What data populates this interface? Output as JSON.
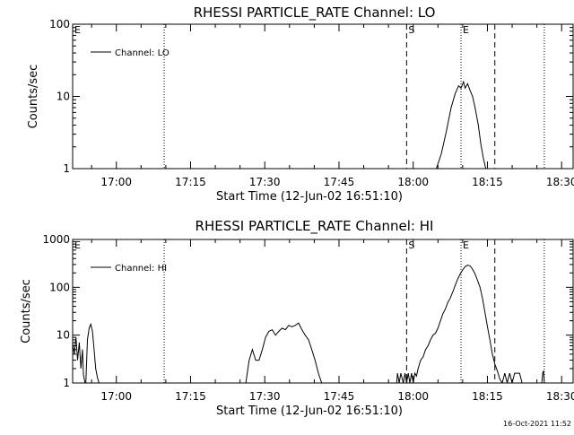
{
  "footer": "16-Oct-2021 11:52",
  "chart_data": [
    {
      "type": "line",
      "title": "RHESSI PARTICLE_RATE Channel: LO",
      "xlabel": "Start Time (12-Jun-02 16:51:10)",
      "ylabel": "Counts/sec",
      "y_scale": "log",
      "ylim": [
        1,
        100
      ],
      "xlim": [
        "16:51:10",
        "18:32:30"
      ],
      "y_ticks": [
        "1",
        "10",
        "100"
      ],
      "x_ticks": [
        "17:00",
        "17:15",
        "17:30",
        "17:45",
        "18:00",
        "18:15",
        "18:30"
      ],
      "legend": {
        "position": "top-left",
        "label": "Channel: LO"
      },
      "markers": [
        {
          "time": "16:51:10",
          "label": "E",
          "style": "dotted"
        },
        {
          "time": "17:09:40",
          "label": "",
          "style": "dotted"
        },
        {
          "time": "17:58:40",
          "label": "S",
          "style": "dashed"
        },
        {
          "time": "18:09:40",
          "label": "E",
          "style": "dotted"
        },
        {
          "time": "18:16:30",
          "label": "",
          "style": "dashed"
        },
        {
          "time": "18:26:30",
          "label": "",
          "style": "dotted"
        }
      ],
      "series": [
        {
          "name": "Channel: LO",
          "x": [
            "18:04:40",
            "18:05:40",
            "18:06:40",
            "18:07:40",
            "18:08:30",
            "18:09:10",
            "18:09:40",
            "18:10:10",
            "18:10:30",
            "18:11:00",
            "18:11:30",
            "18:12:00",
            "18:12:30",
            "18:13:10",
            "18:13:40",
            "18:14:10",
            "18:14:40"
          ],
          "y": [
            1,
            1.6,
            3.2,
            7,
            11,
            14,
            13,
            16,
            13,
            15,
            12,
            10,
            7,
            4,
            2.2,
            1.4,
            1
          ]
        }
      ]
    },
    {
      "type": "line",
      "title": "RHESSI PARTICLE_RATE Channel: HI",
      "xlabel": "Start Time (12-Jun-02 16:51:10)",
      "ylabel": "Counts/sec",
      "y_scale": "log",
      "ylim": [
        1,
        1000
      ],
      "xlim": [
        "16:51:10",
        "18:32:30"
      ],
      "y_ticks": [
        "1",
        "10",
        "100",
        "1000"
      ],
      "x_ticks": [
        "17:00",
        "17:15",
        "17:30",
        "17:45",
        "18:00",
        "18:15",
        "18:30"
      ],
      "legend": {
        "position": "top-left",
        "label": "Channel: HI"
      },
      "markers": [
        {
          "time": "16:51:10",
          "label": "E",
          "style": "dotted"
        },
        {
          "time": "17:09:40",
          "label": "",
          "style": "dotted"
        },
        {
          "time": "17:58:40",
          "label": "S",
          "style": "dashed"
        },
        {
          "time": "18:09:40",
          "label": "E",
          "style": "dotted"
        },
        {
          "time": "18:16:30",
          "label": "",
          "style": "dashed"
        },
        {
          "time": "18:26:30",
          "label": "",
          "style": "dotted"
        }
      ],
      "series": [
        {
          "name": "Channel: HI",
          "segments": [
            {
              "x": [
                "16:51:10",
                "16:51:30",
                "16:51:50",
                "16:52:10",
                "16:52:30",
                "16:52:50",
                "16:53:10",
                "16:53:20",
                "16:53:40",
                "16:53:50",
                "16:54:10",
                "16:54:30",
                "16:54:50",
                "16:55:10",
                "16:55:30",
                "16:55:50",
                "16:56:10",
                "16:56:30",
                "16:56:50"
              ],
              "y": [
                7,
                4,
                9,
                3,
                7,
                2,
                5,
                1.5,
                1,
                1,
                8,
                14,
                17,
                12,
                5,
                2,
                1.3,
                1,
                1
              ]
            },
            {
              "x": [
                "17:26:10",
                "17:26:50",
                "17:27:30",
                "17:28:10",
                "17:28:50",
                "17:29:30",
                "17:30:10",
                "17:30:50",
                "17:31:30",
                "17:32:10",
                "17:32:50",
                "17:33:30",
                "17:34:10",
                "17:34:50",
                "17:35:30",
                "17:36:10",
                "17:36:50",
                "17:37:30",
                "17:38:10",
                "17:38:50",
                "17:39:30",
                "17:40:10",
                "17:40:50",
                "17:41:30"
              ],
              "y": [
                1,
                3,
                5,
                3,
                3,
                5,
                9,
                12,
                13,
                10,
                12,
                14,
                13,
                16,
                15,
                16,
                18,
                13,
                10,
                8,
                5,
                3,
                1.6,
                1
              ]
            },
            {
              "x": [
                "17:56:40",
                "17:56:50",
                "17:57:10",
                "17:57:30",
                "17:58:00",
                "17:58:20",
                "17:58:40",
                "17:59:00",
                "17:59:20",
                "17:59:40",
                "18:00:00",
                "18:00:20",
                "18:00:40",
                "18:01:00",
                "18:01:30",
                "18:02:00",
                "18:02:30",
                "18:03:00",
                "18:03:30",
                "18:04:00",
                "18:04:30",
                "18:05:00",
                "18:05:30",
                "18:06:00",
                "18:06:30",
                "18:07:00",
                "18:07:30",
                "18:08:00",
                "18:08:30",
                "18:09:00",
                "18:09:30",
                "18:10:00",
                "18:10:30",
                "18:11:00",
                "18:11:30",
                "18:12:00",
                "18:12:30",
                "18:13:00",
                "18:13:30",
                "18:14:00",
                "18:14:30",
                "18:15:00",
                "18:15:30",
                "18:16:00",
                "18:16:30",
                "18:17:00",
                "18:17:30",
                "18:18:00",
                "18:18:30",
                "18:19:00",
                "18:19:30",
                "18:20:00",
                "18:20:30",
                "18:21:00",
                "18:21:30",
                "18:22:00"
              ],
              "y": [
                1,
                1.6,
                1,
                1.6,
                1,
                1.6,
                1,
                1.6,
                1,
                1.6,
                1,
                1.6,
                1.4,
                2,
                3,
                3.5,
                5,
                6,
                8,
                10,
                11,
                14,
                20,
                28,
                35,
                48,
                60,
                80,
                110,
                150,
                190,
                230,
                270,
                290,
                280,
                240,
                190,
                140,
                100,
                60,
                30,
                15,
                8,
                4,
                2.5,
                1.8,
                1.2,
                1,
                1.6,
                1,
                1.6,
                1,
                1.6,
                1.6,
                1.6,
                1
              ]
            },
            {
              "x": [
                "18:26:00",
                "18:26:10",
                "18:26:20",
                "18:26:30"
              ],
              "y": [
                1,
                1.6,
                1.8,
                1
              ]
            }
          ]
        }
      ]
    }
  ]
}
